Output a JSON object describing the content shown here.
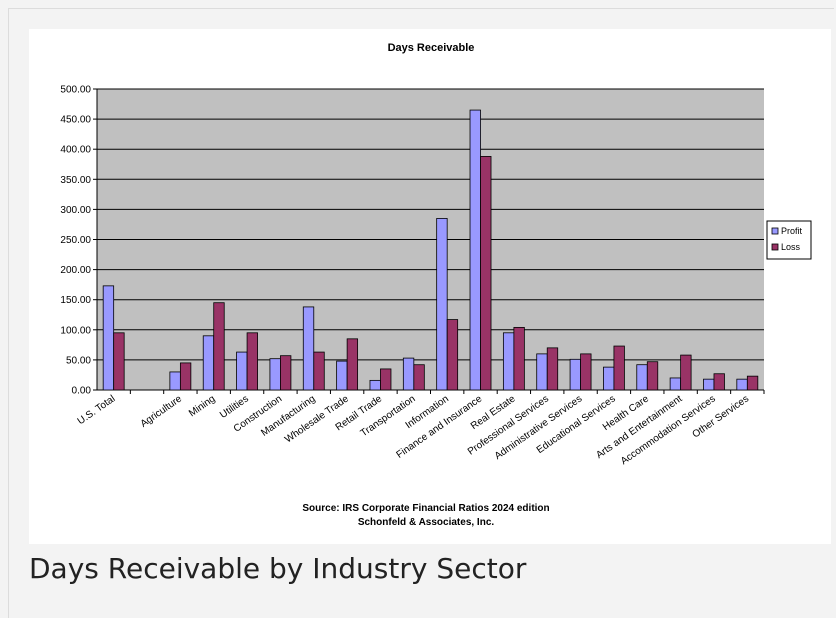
{
  "caption": "Days Receivable by Industry Sector",
  "chart_data": {
    "type": "bar",
    "title": "Days Receivable",
    "source_line1": "Source: IRS Corporate Financial Ratios 2024 edition",
    "source_line2": "Schonfeld & Associates, Inc.",
    "categories": [
      "U.S. Total",
      "",
      "Agriculture",
      "Mining",
      "Utilities",
      "Construction",
      "Manufacturing",
      "Wholesale Trade",
      "Retail Trade",
      "Transportation",
      "Information",
      "Finance and Insurance",
      "Real Estate",
      "Professional Services",
      "Administrative Services",
      "Educational Services",
      "Health Care",
      "Arts and Entertainment",
      "Accommodation Services",
      "Other Services"
    ],
    "series": [
      {
        "name": "Profit",
        "color": "#9999ff",
        "values": [
          173,
          null,
          30,
          90,
          63,
          52,
          138,
          48,
          16,
          53,
          285,
          465,
          95,
          60,
          51,
          38,
          42,
          20,
          18,
          18
        ]
      },
      {
        "name": "Loss",
        "color": "#993366",
        "values": [
          95,
          null,
          45,
          145,
          95,
          57,
          63,
          85,
          35,
          42,
          117,
          388,
          104,
          70,
          60,
          73,
          47,
          58,
          27,
          23
        ]
      }
    ],
    "ylim": [
      0,
      500
    ],
    "yticks": [
      "0.00",
      "50.00",
      "100.00",
      "150.00",
      "200.00",
      "250.00",
      "300.00",
      "350.00",
      "400.00",
      "450.00",
      "500.00"
    ],
    "plot_background": "#c0c0c0",
    "grid": true,
    "legend_position": "right"
  }
}
